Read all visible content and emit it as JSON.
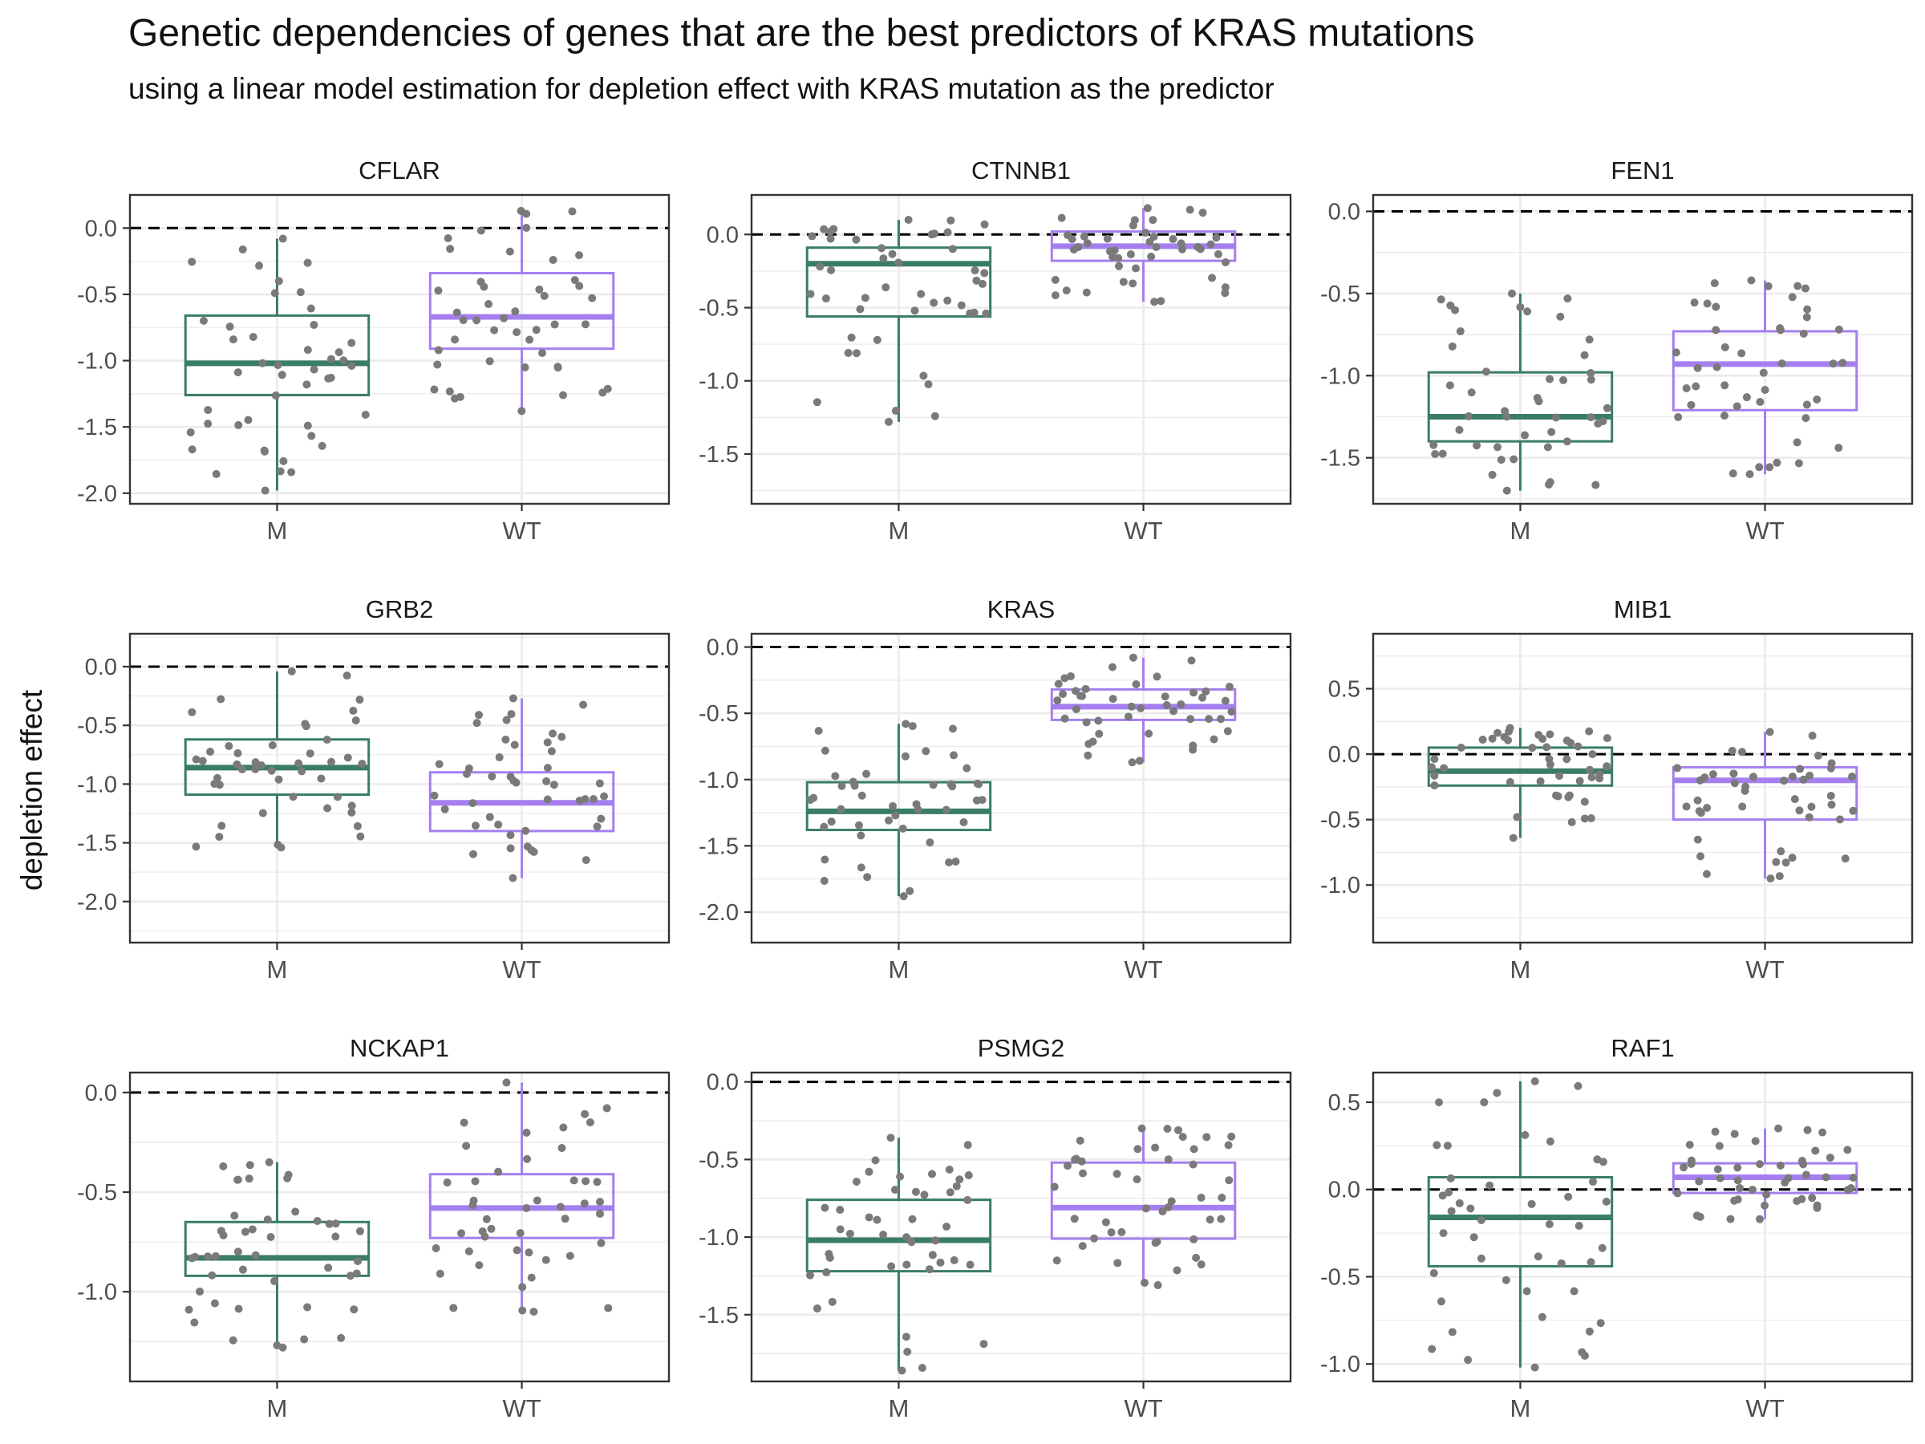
{
  "chart_data": {
    "type": "boxplot",
    "title": "Genetic dependencies of genes that are the best predictors of KRAS mutations",
    "subtitle": "using a linear model estimation for depletion effect with KRAS mutation as the predictor",
    "ylabel": "depletion effect",
    "categories": [
      "M",
      "WT"
    ],
    "reference_line": 0,
    "colors": {
      "M": "#3a7d66",
      "WT": "#a57ff0",
      "points": "#7a7a7a",
      "grid": "#ebebeb",
      "border": "#333333"
    },
    "panels": [
      {
        "name": "CFLAR",
        "ylim": [
          -2.08,
          0.25
        ],
        "ticks": [
          -2.0,
          -1.5,
          -1.0,
          -0.5,
          0.0
        ],
        "boxes": {
          "M": {
            "q1": -1.26,
            "median": -1.02,
            "q3": -0.66,
            "lower": -1.98,
            "upper": -0.08
          },
          "WT": {
            "q1": -0.91,
            "median": -0.67,
            "q3": -0.34,
            "lower": -1.38,
            "upper": 0.13
          }
        }
      },
      {
        "name": "CTNNB1",
        "ylim": [
          -1.84,
          0.27
        ],
        "ticks": [
          -1.5,
          -1.0,
          -0.5,
          0.0
        ],
        "boxes": {
          "M": {
            "q1": -0.56,
            "median": -0.2,
            "q3": -0.09,
            "lower": -1.28,
            "upper": 0.1
          },
          "WT": {
            "q1": -0.18,
            "median": -0.08,
            "q3": 0.02,
            "lower": -0.46,
            "upper": 0.18
          }
        }
      },
      {
        "name": "FEN1",
        "ylim": [
          -1.78,
          0.1
        ],
        "ticks": [
          -1.5,
          -1.0,
          -0.5,
          0.0
        ],
        "boxes": {
          "M": {
            "q1": -1.4,
            "median": -1.25,
            "q3": -0.98,
            "lower": -1.7,
            "upper": -0.5
          },
          "WT": {
            "q1": -1.21,
            "median": -0.93,
            "q3": -0.73,
            "lower": -1.6,
            "upper": -0.42
          }
        }
      },
      {
        "name": "GRB2",
        "ylim": [
          -2.35,
          0.28
        ],
        "ticks": [
          -2.0,
          -1.5,
          -1.0,
          -0.5,
          0.0
        ],
        "boxes": {
          "M": {
            "q1": -1.09,
            "median": -0.86,
            "q3": -0.62,
            "lower": -1.54,
            "upper": -0.04
          },
          "WT": {
            "q1": -1.4,
            "median": -1.16,
            "q3": -0.9,
            "lower": -1.8,
            "upper": -0.27
          }
        }
      },
      {
        "name": "KRAS",
        "ylim": [
          -2.23,
          0.1
        ],
        "ticks": [
          -2.0,
          -1.5,
          -1.0,
          -0.5,
          0.0
        ],
        "boxes": {
          "M": {
            "q1": -1.38,
            "median": -1.24,
            "q3": -1.02,
            "lower": -1.88,
            "upper": -0.58
          },
          "WT": {
            "q1": -0.55,
            "median": -0.45,
            "q3": -0.32,
            "lower": -0.87,
            "upper": -0.08
          }
        }
      },
      {
        "name": "MIB1",
        "ylim": [
          -1.44,
          0.92
        ],
        "ticks": [
          -1.0,
          -0.5,
          0.0,
          0.5
        ],
        "boxes": {
          "M": {
            "q1": -0.24,
            "median": -0.13,
            "q3": 0.05,
            "lower": -0.64,
            "upper": 0.2
          },
          "WT": {
            "q1": -0.5,
            "median": -0.2,
            "q3": -0.1,
            "lower": -0.95,
            "upper": 0.17
          }
        }
      },
      {
        "name": "NCKAP1",
        "ylim": [
          -1.45,
          0.1
        ],
        "ticks": [
          -1.0,
          -0.5,
          0.0
        ],
        "boxes": {
          "M": {
            "q1": -0.92,
            "median": -0.83,
            "q3": -0.65,
            "lower": -1.28,
            "upper": -0.35
          },
          "WT": {
            "q1": -0.73,
            "median": -0.58,
            "q3": -0.41,
            "lower": -1.1,
            "upper": 0.05
          }
        }
      },
      {
        "name": "PSMG2",
        "ylim": [
          -1.93,
          0.06
        ],
        "ticks": [
          -1.5,
          -1.0,
          -0.5,
          0.0
        ],
        "boxes": {
          "M": {
            "q1": -1.22,
            "median": -1.02,
            "q3": -0.76,
            "lower": -1.86,
            "upper": -0.36
          },
          "WT": {
            "q1": -1.01,
            "median": -0.81,
            "q3": -0.52,
            "lower": -1.31,
            "upper": -0.3
          }
        }
      },
      {
        "name": "RAF1",
        "ylim": [
          -1.1,
          0.67
        ],
        "ticks": [
          -1.0,
          -0.5,
          0.0,
          0.5
        ],
        "boxes": {
          "M": {
            "q1": -0.44,
            "median": -0.16,
            "q3": 0.07,
            "lower": -1.02,
            "upper": 0.62
          },
          "WT": {
            "q1": -0.02,
            "median": 0.07,
            "q3": 0.15,
            "lower": -0.17,
            "upper": 0.35
          }
        }
      }
    ]
  }
}
